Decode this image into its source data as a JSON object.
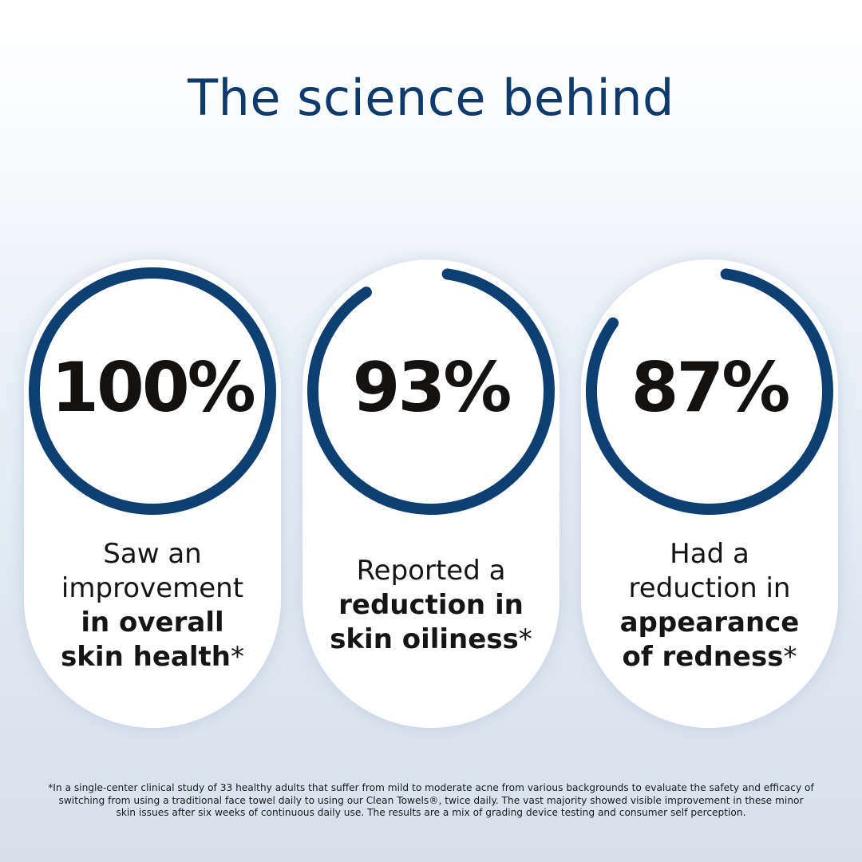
{
  "title": "The science behind",
  "ring_color": "#0e3f72",
  "stats": [
    {
      "value": "100%",
      "percent": 100,
      "lines": [
        {
          "light": "Saw an"
        },
        {
          "light": "improvement"
        },
        {
          "bold": "in overall"
        },
        {
          "bold": "skin health",
          "light": "*"
        }
      ]
    },
    {
      "value": "93%",
      "percent": 93,
      "lines": [
        {
          "light": "Reported a"
        },
        {
          "bold": "reduction in"
        },
        {
          "bold": "skin oiliness",
          "light": "*"
        }
      ]
    },
    {
      "value": "87%",
      "percent": 87,
      "lines": [
        {
          "light": "Had a"
        },
        {
          "light": "reduction in"
        },
        {
          "bold": "appearance"
        },
        {
          "bold": "of redness",
          "light": "*"
        }
      ]
    }
  ],
  "footnote": "*In a single-center clinical study of 33 healthy adults that suffer from mild to moderate acne from various backgrounds to evaluate the safety and efficacy of switching from using a traditional face towel daily to using our Clean Towels®, twice daily. The vast majority showed visible improvement in these minor skin issues after six weeks of continuous daily use. The results are a mix of grading device testing and consumer self perception."
}
